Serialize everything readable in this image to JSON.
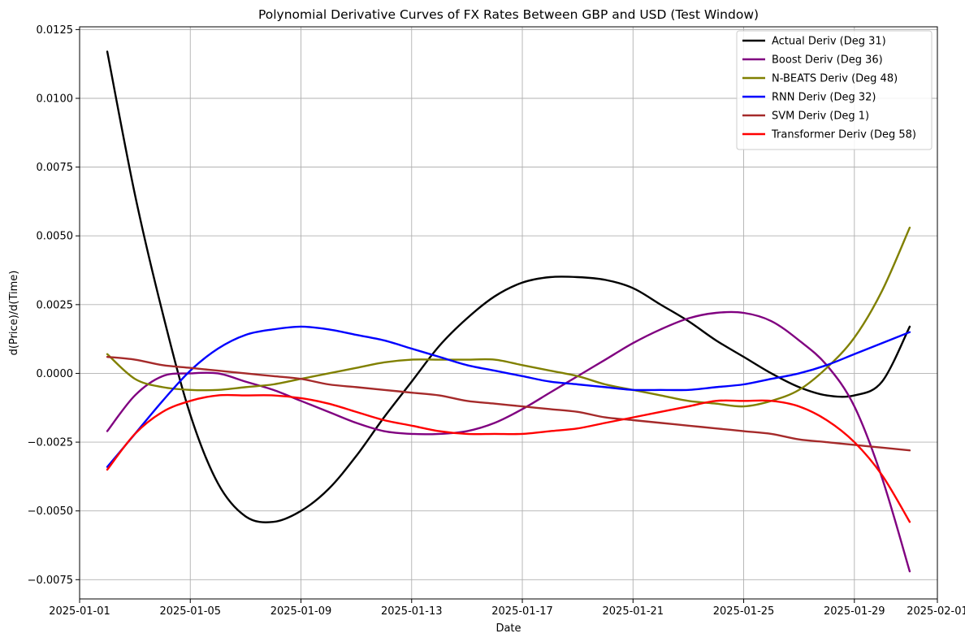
{
  "chart_data": {
    "type": "line",
    "title": "Polynomial Derivative Curves of FX Rates Between GBP and USD (Test Window)",
    "xlabel": "Date",
    "ylabel": "d(Price)/d(Time)",
    "x_ticks": [
      "2025-01-01",
      "2025-01-05",
      "2025-01-09",
      "2025-01-13",
      "2025-01-17",
      "2025-01-21",
      "2025-01-25",
      "2025-01-29",
      "2025-02-01"
    ],
    "y_ticks": [
      "−0.0075",
      "−0.0050",
      "−0.0025",
      "0.0000",
      "0.0025",
      "0.0050",
      "0.0075",
      "0.0100",
      "0.0125"
    ],
    "xlim": [
      "2025-01-01",
      "2025-02-01"
    ],
    "ylim": [
      -0.0082,
      0.0126
    ],
    "grid": true,
    "legend_position": "top-right",
    "x": [
      "2025-01-02",
      "2025-01-03",
      "2025-01-04",
      "2025-01-05",
      "2025-01-06",
      "2025-01-07",
      "2025-01-08",
      "2025-01-09",
      "2025-01-10",
      "2025-01-11",
      "2025-01-12",
      "2025-01-13",
      "2025-01-14",
      "2025-01-15",
      "2025-01-16",
      "2025-01-17",
      "2025-01-18",
      "2025-01-19",
      "2025-01-20",
      "2025-01-21",
      "2025-01-22",
      "2025-01-23",
      "2025-01-24",
      "2025-01-25",
      "2025-01-26",
      "2025-01-27",
      "2025-01-28",
      "2025-01-29",
      "2025-01-30",
      "2025-01-31"
    ],
    "series": [
      {
        "name": "Actual Deriv (Deg 31)",
        "color": "#000000",
        "values": [
          0.0117,
          0.0065,
          0.0022,
          -0.0015,
          -0.004,
          -0.0052,
          -0.0054,
          -0.005,
          -0.0042,
          -0.003,
          -0.0016,
          -0.0003,
          0.001,
          0.002,
          0.0028,
          0.0033,
          0.0035,
          0.0035,
          0.0034,
          0.0031,
          0.0025,
          0.0019,
          0.0012,
          0.0006,
          0.0,
          -0.0005,
          -0.0008,
          -0.0008,
          -0.0003,
          0.0017
        ]
      },
      {
        "name": "Boost Deriv (Deg 36)",
        "color": "#800080",
        "values": [
          -0.0021,
          -0.0008,
          -0.0001,
          0.0,
          0.0,
          -0.0003,
          -0.0006,
          -0.001,
          -0.0014,
          -0.0018,
          -0.0021,
          -0.0022,
          -0.0022,
          -0.0021,
          -0.0018,
          -0.0013,
          -0.0007,
          -0.0001,
          0.0005,
          0.0011,
          0.0016,
          0.002,
          0.0022,
          0.0022,
          0.0019,
          0.0012,
          0.0003,
          -0.0012,
          -0.0038,
          -0.0072
        ]
      },
      {
        "name": "N-BEATS Deriv (Deg 48)",
        "color": "#808000",
        "values": [
          0.0007,
          -0.0002,
          -0.0005,
          -0.0006,
          -0.0006,
          -0.0005,
          -0.0004,
          -0.0002,
          0.0,
          0.0002,
          0.0004,
          0.0005,
          0.0005,
          0.0005,
          0.0005,
          0.0003,
          0.0001,
          -0.0001,
          -0.0004,
          -0.0006,
          -0.0008,
          -0.001,
          -0.0011,
          -0.0012,
          -0.001,
          -0.0006,
          0.0002,
          0.0013,
          0.003,
          0.0053
        ]
      },
      {
        "name": "RNN Deriv (Deg 32)",
        "color": "#0000ff",
        "values": [
          -0.0034,
          -0.0022,
          -0.001,
          0.0001,
          0.0009,
          0.0014,
          0.0016,
          0.0017,
          0.0016,
          0.0014,
          0.0012,
          0.0009,
          0.0006,
          0.0003,
          0.0001,
          -0.0001,
          -0.0003,
          -0.0004,
          -0.0005,
          -0.0006,
          -0.0006,
          -0.0006,
          -0.0005,
          -0.0004,
          -0.0002,
          0.0,
          0.0003,
          0.0007,
          0.0011,
          0.0015
        ]
      },
      {
        "name": "SVM Deriv (Deg 1)",
        "color": "#a52a2a",
        "values": [
          0.0006,
          0.0005,
          0.0003,
          0.0002,
          0.0001,
          0.0,
          -0.0001,
          -0.0002,
          -0.0004,
          -0.0005,
          -0.0006,
          -0.0007,
          -0.0008,
          -0.001,
          -0.0011,
          -0.0012,
          -0.0013,
          -0.0014,
          -0.0016,
          -0.0017,
          -0.0018,
          -0.0019,
          -0.002,
          -0.0021,
          -0.0022,
          -0.0024,
          -0.0025,
          -0.0026,
          -0.0027,
          -0.0028
        ]
      },
      {
        "name": "Transformer Deriv (Deg 58)",
        "color": "#ff0000",
        "values": [
          -0.0035,
          -0.0022,
          -0.0014,
          -0.001,
          -0.0008,
          -0.0008,
          -0.0008,
          -0.0009,
          -0.0011,
          -0.0014,
          -0.0017,
          -0.0019,
          -0.0021,
          -0.0022,
          -0.0022,
          -0.0022,
          -0.0021,
          -0.002,
          -0.0018,
          -0.0016,
          -0.0014,
          -0.0012,
          -0.001,
          -0.001,
          -0.001,
          -0.0012,
          -0.0017,
          -0.0025,
          -0.0037,
          -0.0054
        ]
      }
    ]
  }
}
